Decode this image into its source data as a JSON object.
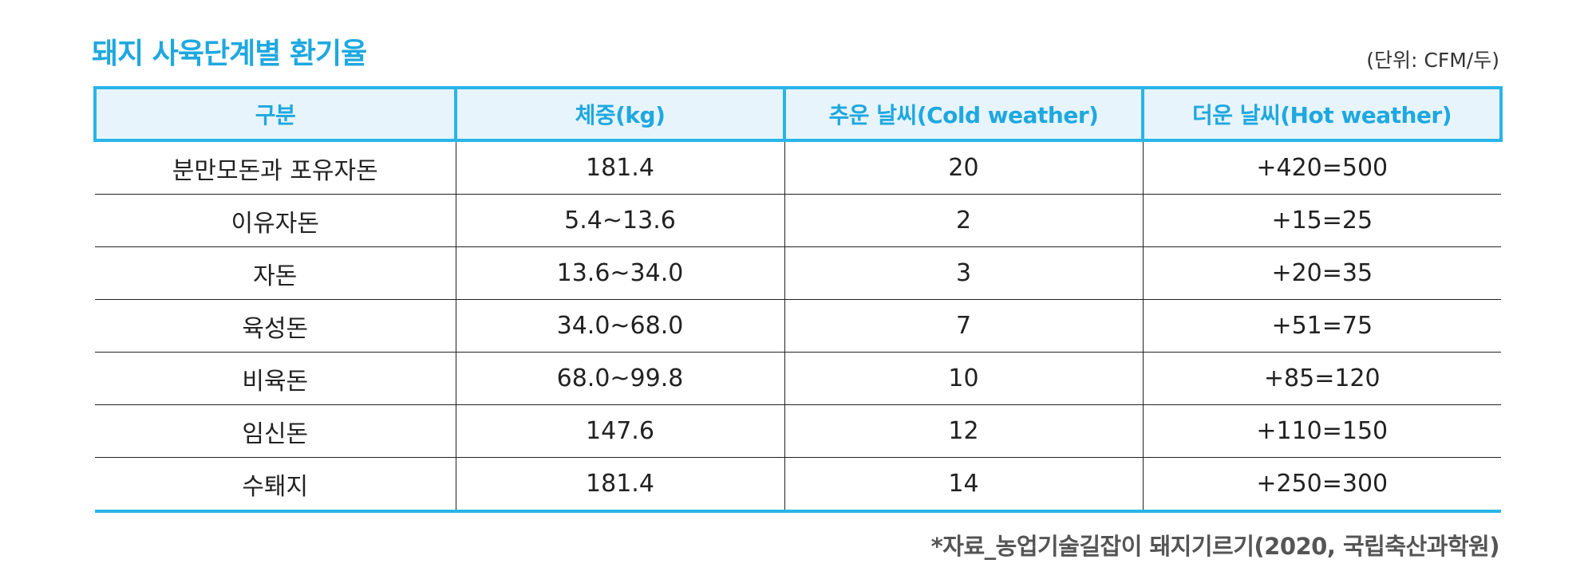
{
  "header": {
    "title": "돼지 사육단계별 환기율",
    "unit": "(단위: CFM/두)"
  },
  "table": {
    "columns": [
      "구분",
      "체중(kg)",
      "추운 날씨(Cold weather)",
      "더운 날씨(Hot weather)"
    ],
    "rows": [
      [
        "분만모돈과 포유자돈",
        "181.4",
        "20",
        "+420=500"
      ],
      [
        "이유자돈",
        "5.4~13.6",
        "2",
        "+15=25"
      ],
      [
        "자돈",
        "13.6~34.0",
        "3",
        "+20=35"
      ],
      [
        "육성돈",
        "34.0~68.0",
        "7",
        "+51=75"
      ],
      [
        "비육돈",
        "68.0~99.8",
        "10",
        "+85=120"
      ],
      [
        "임신돈",
        "147.6",
        "12",
        "+110=150"
      ],
      [
        "수퇘지",
        "181.4",
        "14",
        "+250=300"
      ]
    ]
  },
  "footnote": "*자료_농업기술길잡이 돼지기르기(2020, 국립축산과학원)"
}
